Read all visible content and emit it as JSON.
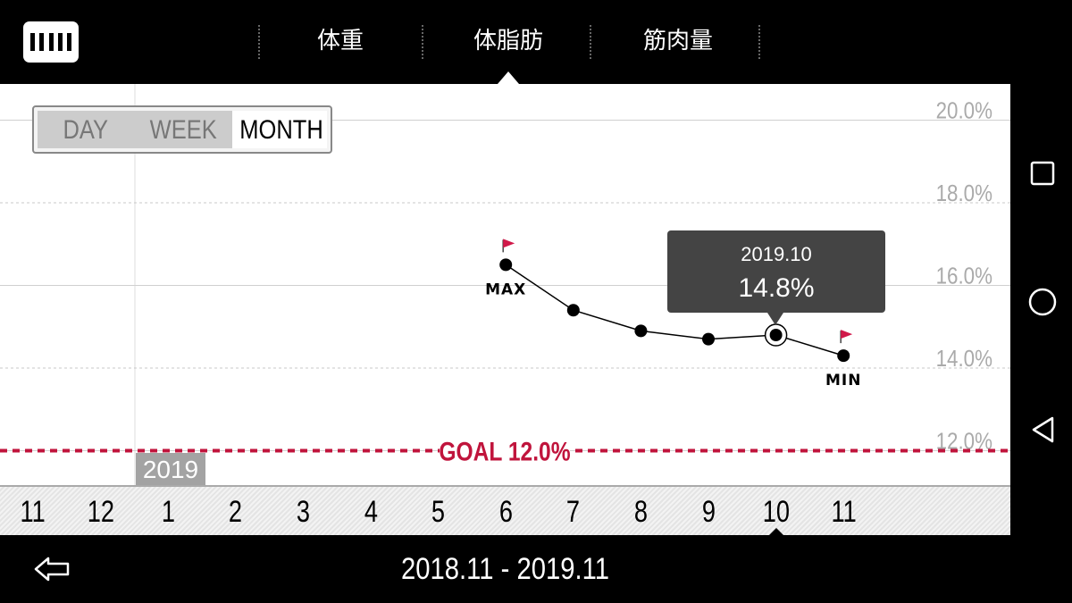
{
  "header": {
    "logo_icon": "tanita-logo-icon",
    "tabs": [
      {
        "label": "体重",
        "active": false
      },
      {
        "label": "体脂肪",
        "active": true
      },
      {
        "label": "筋肉量",
        "active": false
      }
    ]
  },
  "period_selector": {
    "options": [
      "DAY",
      "WEEK",
      "MONTH"
    ],
    "selected": "MONTH"
  },
  "tooltip": {
    "date": "2019.10",
    "value": "14.8%"
  },
  "year_marker": "2019",
  "footer": {
    "back_icon": "arrow-left-icon",
    "date_range": "2018.11 - 2019.11"
  },
  "system_nav": {
    "icons": [
      "square-recent-apps-icon",
      "circle-home-icon",
      "triangle-back-icon"
    ]
  },
  "colors": {
    "goal_line": "#c0143c",
    "flag": "#d1194a",
    "background": "#000000",
    "chart_background": "#ffffff"
  },
  "chart_data": {
    "type": "line",
    "x": [
      "11",
      "12",
      "1",
      "2",
      "3",
      "4",
      "5",
      "6",
      "7",
      "8",
      "9",
      "10",
      "11"
    ],
    "series": [
      {
        "values": [
          null,
          null,
          null,
          null,
          null,
          null,
          null,
          16.5,
          15.4,
          14.9,
          14.7,
          14.8,
          14.3
        ]
      }
    ],
    "ylim": [
      11.0,
      21.0
    ],
    "yticks": [
      "12.0%",
      "14.0%",
      "16.0%",
      "18.0%",
      "20.0%"
    ],
    "ytick_values": [
      12,
      14,
      16,
      18,
      20
    ],
    "goal": {
      "value": 12.0,
      "label": "GOAL 12.0%"
    },
    "annotations": [
      {
        "label": "MAX",
        "x": "6",
        "value": 16.5
      },
      {
        "label": "MIN",
        "x": "11",
        "value": 14.3
      }
    ],
    "selected_x": "10",
    "grid": true
  }
}
